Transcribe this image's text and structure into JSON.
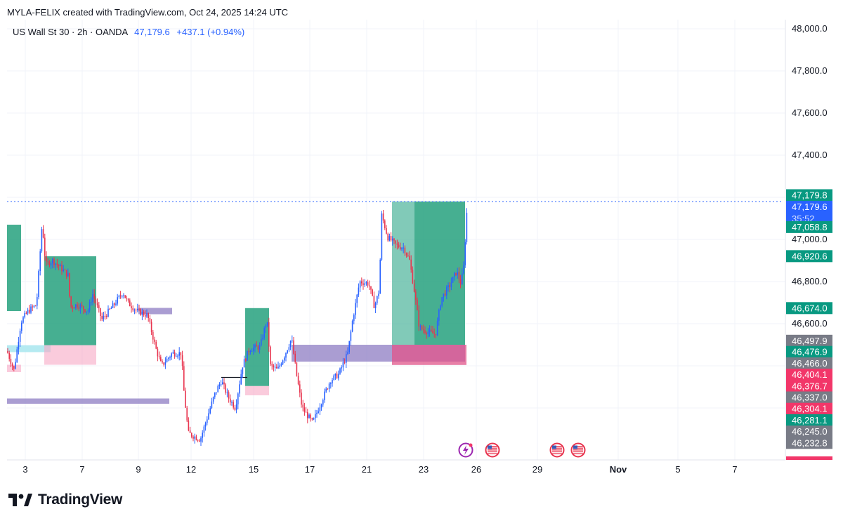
{
  "header": {
    "attribution": "MYLA-FELIX created with TradingView.com, Oct 24, 2025 14:24 UTC"
  },
  "legend": {
    "symbol": "US Wall St 30 · 2h · OANDA",
    "last": "47,179.6",
    "change": "+437.1 (+0.94%)"
  },
  "brand": {
    "name": "TradingView"
  },
  "colors": {
    "up": "#2962ff",
    "down": "#e8344e",
    "zone_green": "#26a17e",
    "zone_purple": "#8e7cc3",
    "zone_pink": "#f7a8c4",
    "zone_cyan": "#a8e6ef"
  },
  "chart_data": {
    "type": "line",
    "title": "",
    "xlabel": "",
    "ylabel": "",
    "ylim": [
      46190,
      48080
    ],
    "x_ticks": [
      "3",
      "7",
      "9",
      "12",
      "15",
      "17",
      "21",
      "23",
      "26",
      "29",
      "Nov",
      "5",
      "7"
    ],
    "y_ticks": [
      "48,000.0",
      "47,800.0",
      "47,600.0",
      "47,400.0",
      "47,000.0",
      "46,800.0",
      "46,600.0"
    ],
    "price_path": [
      {
        "x": 10,
        "y": 46470
      },
      {
        "x": 20,
        "y": 46380
      },
      {
        "x": 30,
        "y": 46610
      },
      {
        "x": 40,
        "y": 46660
      },
      {
        "x": 52,
        "y": 46690
      },
      {
        "x": 60,
        "y": 47080
      },
      {
        "x": 65,
        "y": 46880
      },
      {
        "x": 75,
        "y": 46900
      },
      {
        "x": 85,
        "y": 46870
      },
      {
        "x": 97,
        "y": 46830
      },
      {
        "x": 100,
        "y": 46680
      },
      {
        "x": 110,
        "y": 46690
      },
      {
        "x": 125,
        "y": 46660
      },
      {
        "x": 132,
        "y": 46740
      },
      {
        "x": 145,
        "y": 46620
      },
      {
        "x": 160,
        "y": 46680
      },
      {
        "x": 175,
        "y": 46750
      },
      {
        "x": 182,
        "y": 46700
      },
      {
        "x": 195,
        "y": 46660
      },
      {
        "x": 210,
        "y": 46640
      },
      {
        "x": 222,
        "y": 46480
      },
      {
        "x": 230,
        "y": 46400
      },
      {
        "x": 245,
        "y": 46460
      },
      {
        "x": 258,
        "y": 46460
      },
      {
        "x": 262,
        "y": 46270
      },
      {
        "x": 268,
        "y": 46080
      },
      {
        "x": 285,
        "y": 46050
      },
      {
        "x": 305,
        "y": 46260
      },
      {
        "x": 315,
        "y": 46330
      },
      {
        "x": 325,
        "y": 46250
      },
      {
        "x": 335,
        "y": 46200
      },
      {
        "x": 345,
        "y": 46400
      },
      {
        "x": 355,
        "y": 46480
      },
      {
        "x": 370,
        "y": 46490
      },
      {
        "x": 380,
        "y": 46620
      },
      {
        "x": 385,
        "y": 46400
      },
      {
        "x": 395,
        "y": 46380
      },
      {
        "x": 405,
        "y": 46450
      },
      {
        "x": 415,
        "y": 46530
      },
      {
        "x": 422,
        "y": 46360
      },
      {
        "x": 430,
        "y": 46200
      },
      {
        "x": 445,
        "y": 46130
      },
      {
        "x": 460,
        "y": 46250
      },
      {
        "x": 470,
        "y": 46330
      },
      {
        "x": 482,
        "y": 46360
      },
      {
        "x": 495,
        "y": 46460
      },
      {
        "x": 502,
        "y": 46620
      },
      {
        "x": 512,
        "y": 46800
      },
      {
        "x": 525,
        "y": 46790
      },
      {
        "x": 533,
        "y": 46680
      },
      {
        "x": 540,
        "y": 46760
      },
      {
        "x": 543,
        "y": 47120
      },
      {
        "x": 552,
        "y": 47010
      },
      {
        "x": 565,
        "y": 46970
      },
      {
        "x": 575,
        "y": 46960
      },
      {
        "x": 583,
        "y": 46900
      },
      {
        "x": 590,
        "y": 46750
      },
      {
        "x": 597,
        "y": 46580
      },
      {
        "x": 610,
        "y": 46560
      },
      {
        "x": 620,
        "y": 46550
      },
      {
        "x": 628,
        "y": 46720
      },
      {
        "x": 640,
        "y": 46780
      },
      {
        "x": 650,
        "y": 46850
      },
      {
        "x": 656,
        "y": 46790
      },
      {
        "x": 660,
        "y": 46870
      },
      {
        "x": 665,
        "y": 47160
      }
    ],
    "zones": [
      {
        "kind": "green",
        "x1": 10,
        "x2": 30,
        "y1": 46660,
        "y2": 47070
      },
      {
        "kind": "pink",
        "x1": 10,
        "x2": 30,
        "y1": 46370,
        "y2": 46405
      },
      {
        "kind": "cyan",
        "x1": 10,
        "x2": 72,
        "y1": 46465,
        "y2": 46498
      },
      {
        "kind": "green",
        "x1": 63,
        "x2": 137,
        "y1": 46498,
        "y2": 46920
      },
      {
        "kind": "pink",
        "x1": 63,
        "x2": 137,
        "y1": 46405,
        "y2": 46498
      },
      {
        "kind": "purple",
        "x1": 197,
        "x2": 245,
        "y1": 46645,
        "y2": 46675
      },
      {
        "kind": "purple",
        "x1": 10,
        "x2": 241,
        "y1": 46220,
        "y2": 46245
      },
      {
        "kind": "green",
        "x1": 349,
        "x2": 383,
        "y1": 46304,
        "y2": 46674
      },
      {
        "kind": "pink",
        "x1": 349,
        "x2": 383,
        "y1": 46260,
        "y2": 46304
      },
      {
        "kind": "purple",
        "x1": 415,
        "x2": 662,
        "y1": 46420,
        "y2": 46500
      },
      {
        "kind": "green-light",
        "x1": 558,
        "x2": 590,
        "y1": 46500,
        "y2": 47180
      },
      {
        "kind": "green",
        "x1": 590,
        "x2": 662,
        "y1": 46500,
        "y2": 47180
      },
      {
        "kind": "pink-strong",
        "x1": 558,
        "x2": 664,
        "y1": 46404,
        "y2": 46500
      }
    ],
    "price_labels": [
      {
        "text": "47,179.8",
        "color": "#089981",
        "y": 47210
      },
      {
        "text": "47,179.6",
        "color": "#2962ff",
        "y": 47153,
        "sub": "35:52"
      },
      {
        "text": "47,058.8",
        "color": "#089981",
        "y": 47058.8
      },
      {
        "text": "46,920.6",
        "color": "#089981",
        "y": 46920.6
      },
      {
        "text": "46,674.0",
        "color": "#089981",
        "y": 46674
      },
      {
        "text": "46,497.9",
        "color": "#787b86",
        "y": 46519
      },
      {
        "text": "46,476.9",
        "color": "#089981",
        "y": 46466
      },
      {
        "text": "46,466.0",
        "color": "#787b86",
        "y": 46412
      },
      {
        "text": "46,404.1",
        "color": "#f23669",
        "y": 46358
      },
      {
        "text": "46,376.7",
        "color": "#f23669",
        "y": 46304
      },
      {
        "text": "46,337.0",
        "color": "#787b86",
        "y": 46250
      },
      {
        "text": "46,304.1",
        "color": "#f23669",
        "y": 46196
      },
      {
        "text": "46,281.1",
        "color": "#089981",
        "y": 46142
      },
      {
        "text": "46,245.0",
        "color": "#787b86",
        "y": 46088
      },
      {
        "text": "46,232.8",
        "color": "#787b86",
        "y": 46034
      }
    ],
    "events": [
      {
        "icon": "lightning-icon",
        "x": 663
      },
      {
        "icon": "us-flag-icon",
        "x": 701
      },
      {
        "icon": "us-flag-icon",
        "x": 793
      },
      {
        "icon": "us-flag-icon",
        "x": 823
      }
    ]
  }
}
